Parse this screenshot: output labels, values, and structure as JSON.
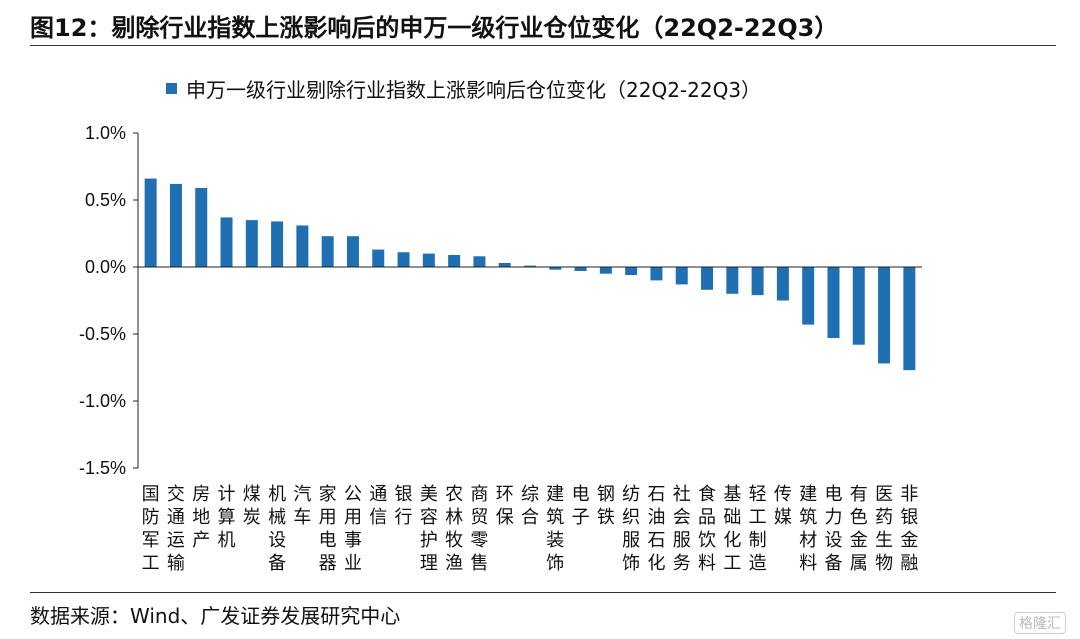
{
  "figure": {
    "title": "图12：剔除行业指数上涨影响后的申万一级行业仓位变化（22Q2-22Q3）",
    "source": "数据来源：Wind、广发证券发展研究中心",
    "watermark": "格隆汇"
  },
  "chart_data": {
    "type": "bar",
    "legend": "申万一级行业剔除行业指数上涨影响后仓位变化（22Q2-22Q3）",
    "legend_position": "top",
    "bar_color": "#1f6fb2",
    "y_unit": "%",
    "ylim": [
      -1.5,
      1.0
    ],
    "yticks": [
      "1.0%",
      "0.5%",
      "0.0%",
      "-0.5%",
      "-1.0%",
      "-1.5%"
    ],
    "ytick_values": [
      1.0,
      0.5,
      0.0,
      -0.5,
      -1.0,
      -1.5
    ],
    "grid": false,
    "categories": [
      "国防军工",
      "交通运输",
      "房地产",
      "计算机",
      "煤炭",
      "机械设备",
      "汽车",
      "家用电器",
      "公用事业",
      "通信",
      "银行",
      "美容护理",
      "农林牧渔",
      "商贸零售",
      "环保",
      "综合",
      "建筑装饰",
      "电子",
      "钢铁",
      "纺织服饰",
      "石油石化",
      "社会服务",
      "食品饮料",
      "基础化工",
      "轻工制造",
      "传媒",
      "建筑材料",
      "电力设备",
      "有色金属",
      "医药生物",
      "非银金融"
    ],
    "values": [
      0.66,
      0.62,
      0.59,
      0.37,
      0.35,
      0.34,
      0.31,
      0.23,
      0.23,
      0.13,
      0.11,
      0.1,
      0.09,
      0.08,
      0.03,
      0.01,
      -0.02,
      -0.03,
      -0.05,
      -0.06,
      -0.1,
      -0.13,
      -0.17,
      -0.2,
      -0.21,
      -0.25,
      -0.43,
      -0.53,
      -0.58,
      -0.72,
      -0.77
    ]
  }
}
